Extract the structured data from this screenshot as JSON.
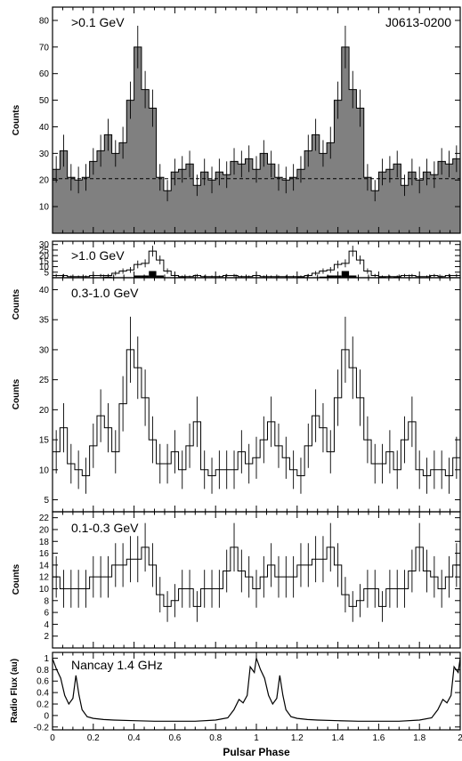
{
  "chart_data": {
    "type": "histogram",
    "xlabel": "Pulsar Phase",
    "xlim": [
      0,
      2
    ],
    "xticks": [
      "0",
      "0.2",
      "0.4",
      "0.6",
      "0.8",
      "1",
      "1.2",
      "1.4",
      "1.6",
      "1.8",
      "2"
    ],
    "panels": [
      {
        "id": "p1",
        "label": ">0.1 GeV",
        "source": "J0613-0200",
        "ylabel": "Counts",
        "ylim": [
          0,
          85
        ],
        "yticks": [
          10,
          20,
          30,
          40,
          50,
          60,
          70,
          80
        ],
        "style": "filled",
        "fill_color": "#808080",
        "background_level": 20.5,
        "values": [
          24,
          31,
          21,
          20,
          21,
          27,
          31,
          37,
          30,
          34,
          50,
          70,
          54,
          47,
          21,
          16,
          23,
          24,
          26,
          18,
          23,
          20,
          23,
          22,
          27,
          26,
          28,
          24,
          30,
          26,
          21,
          20,
          21,
          24,
          31,
          37,
          30,
          34,
          50,
          70,
          54,
          47,
          21,
          16,
          23,
          24,
          26,
          18,
          23,
          20,
          23,
          22,
          27,
          26,
          28
        ],
        "errors": [
          5,
          6,
          5,
          5,
          5,
          5,
          6,
          6,
          5,
          6,
          7,
          8,
          7,
          7,
          5,
          4,
          5,
          5,
          5,
          4,
          5,
          5,
          5,
          5,
          5,
          5,
          5,
          5,
          5,
          5,
          5,
          5,
          5,
          5,
          6,
          6,
          5,
          6,
          7,
          8,
          7,
          7,
          5,
          4,
          5,
          5,
          5,
          4,
          5,
          5,
          5,
          5,
          5,
          5,
          5
        ]
      },
      {
        "id": "p2",
        "label": ">1.0 GeV",
        "ylabel": "Counts",
        "ylim": [
          0,
          33
        ],
        "yticks": [
          5,
          10,
          15,
          20,
          25,
          30
        ],
        "style": "step",
        "values": [
          2,
          2,
          1,
          1,
          1,
          2,
          2,
          2,
          4,
          6,
          7,
          12,
          13,
          24,
          16,
          6,
          2,
          1,
          1,
          2,
          1,
          1,
          1,
          2,
          2,
          1,
          1,
          2,
          1,
          1,
          1,
          1,
          1,
          1,
          2,
          4,
          6,
          7,
          12,
          13,
          24,
          16,
          6,
          2,
          1,
          1,
          1,
          2,
          2,
          1,
          1,
          2,
          1,
          2,
          2
        ],
        "errors": [
          1.4,
          1.4,
          1,
          1,
          1,
          1.4,
          1.4,
          1.4,
          2,
          2.4,
          2.6,
          3.5,
          3.6,
          4.9,
          4,
          2.4,
          1.4,
          1,
          1,
          1.4,
          1,
          1,
          1,
          1.4,
          1.4,
          1,
          1,
          1.4,
          1,
          1,
          1,
          1,
          1,
          1,
          1.4,
          2,
          2.4,
          2.6,
          3.5,
          3.6,
          4.9,
          4,
          2.4,
          1.4,
          1,
          1,
          1,
          1.4,
          1.4,
          1,
          1,
          1.4,
          1,
          1.4,
          1.4
        ],
        "secondary_values": [
          0,
          0,
          0,
          0,
          0,
          0,
          0,
          1,
          0,
          0,
          0,
          2,
          2,
          6,
          2,
          0,
          0,
          1,
          0,
          0,
          0,
          0,
          0,
          0,
          0,
          0,
          0,
          0,
          0,
          0,
          0,
          0,
          0,
          1,
          0,
          0,
          1,
          2,
          2,
          6,
          2,
          0,
          0,
          0,
          1,
          0,
          1,
          0,
          0,
          0,
          0,
          0,
          0,
          0,
          0
        ],
        "secondary_color": "#000000"
      },
      {
        "id": "p3",
        "label": "0.3-1.0 GeV",
        "ylabel": "Counts",
        "ylim": [
          3,
          42
        ],
        "yticks": [
          5,
          10,
          15,
          20,
          25,
          30,
          35,
          40
        ],
        "style": "step",
        "values": [
          13,
          17,
          11,
          10,
          9,
          14,
          19,
          17,
          13,
          21,
          30,
          27,
          22,
          15,
          11,
          11,
          13,
          10,
          14,
          18,
          10,
          9,
          10,
          10,
          10,
          13,
          11,
          12,
          15,
          18,
          14,
          12,
          10,
          9,
          14,
          19,
          17,
          13,
          22,
          30,
          27,
          22,
          15,
          11,
          11,
          13,
          10,
          15,
          18,
          10,
          9,
          10,
          10,
          9,
          12
        ],
        "errors": [
          3.6,
          4.1,
          3.3,
          3.2,
          3,
          3.7,
          4.4,
          4.1,
          3.6,
          4.6,
          5.5,
          5.2,
          4.7,
          3.9,
          3.3,
          3.3,
          3.6,
          3.2,
          3.7,
          4.2,
          3.2,
          3,
          3.2,
          3.2,
          3.2,
          3.6,
          3.3,
          3.5,
          3.9,
          4.2,
          3.7,
          3.5,
          3.2,
          3,
          3.7,
          4.4,
          4.1,
          3.6,
          4.7,
          5.5,
          5.2,
          4.7,
          3.9,
          3.3,
          3.3,
          3.6,
          3.2,
          3.9,
          4.2,
          3.2,
          3,
          3.2,
          3.2,
          3,
          3.5
        ]
      },
      {
        "id": "p4",
        "label": "0.1-0.3 GeV",
        "ylabel": "Counts",
        "ylim": [
          0,
          23
        ],
        "yticks": [
          2,
          4,
          6,
          8,
          10,
          12,
          14,
          16,
          18,
          20,
          22
        ],
        "style": "step",
        "values": [
          12,
          10,
          10,
          10,
          10,
          12,
          12,
          12,
          14,
          14,
          15,
          15,
          17,
          14,
          9,
          7,
          8,
          10,
          10,
          7,
          10,
          10,
          10,
          13,
          17,
          13,
          12,
          10,
          12,
          14,
          12,
          12,
          12,
          14,
          14,
          15,
          15,
          17,
          14,
          9,
          7,
          8,
          10,
          10,
          7,
          10,
          10,
          10,
          13,
          17,
          13,
          12,
          10,
          12,
          14
        ],
        "errors": [
          3.5,
          3.2,
          3.2,
          3.2,
          3.2,
          3.5,
          3.5,
          3.5,
          3.7,
          3.7,
          3.9,
          3.9,
          4.1,
          3.7,
          3,
          2.6,
          2.8,
          3.2,
          3.2,
          2.6,
          3.2,
          3.2,
          3.2,
          3.6,
          4.1,
          3.6,
          3.5,
          3.2,
          3.5,
          3.7,
          3.5,
          3.5,
          3.5,
          3.7,
          3.7,
          3.9,
          3.9,
          4.1,
          3.7,
          3,
          2.6,
          2.8,
          3.2,
          3.2,
          2.6,
          3.2,
          3.2,
          3.2,
          3.6,
          4.1,
          3.6,
          3.5,
          3.2,
          3.5,
          3.7
        ]
      },
      {
        "id": "p5",
        "label": "Nancay 1.4 GHz",
        "ylabel": "Radio Flux (au)",
        "ylim": [
          -0.25,
          1.1
        ],
        "yticks": [
          -0.2,
          0,
          0.2,
          0.4,
          0.6,
          0.8,
          1
        ],
        "yticklabels": [
          "-0.2",
          "0",
          "0.2",
          "0.4",
          "0.6",
          "0.8",
          "1"
        ],
        "style": "line",
        "x": [
          0.0,
          0.02,
          0.04,
          0.06,
          0.08,
          0.1,
          0.115,
          0.13,
          0.145,
          0.17,
          0.2,
          0.25,
          0.3,
          0.4,
          0.5,
          0.6,
          0.7,
          0.8,
          0.86,
          0.89,
          0.915,
          0.935,
          0.955,
          0.97,
          0.99,
          1.0,
          1.02,
          1.04,
          1.06,
          1.08,
          1.1,
          1.115,
          1.13,
          1.145,
          1.17,
          1.2,
          1.25,
          1.3,
          1.4,
          1.5,
          1.6,
          1.7,
          1.8,
          1.86,
          1.89,
          1.915,
          1.935,
          1.955,
          1.97,
          1.99,
          2.0
        ],
        "y": [
          0.99,
          0.8,
          0.65,
          0.35,
          0.2,
          0.3,
          0.7,
          0.35,
          0.1,
          -0.02,
          -0.05,
          -0.07,
          -0.08,
          -0.09,
          -0.1,
          -0.1,
          -0.1,
          -0.08,
          -0.04,
          0.1,
          0.28,
          0.22,
          0.35,
          0.85,
          0.75,
          1.0,
          0.8,
          0.65,
          0.35,
          0.2,
          0.3,
          0.7,
          0.35,
          0.1,
          -0.02,
          -0.05,
          -0.07,
          -0.08,
          -0.09,
          -0.1,
          -0.1,
          -0.1,
          -0.08,
          -0.04,
          0.1,
          0.28,
          0.22,
          0.35,
          0.85,
          0.75,
          1.0
        ]
      }
    ]
  }
}
